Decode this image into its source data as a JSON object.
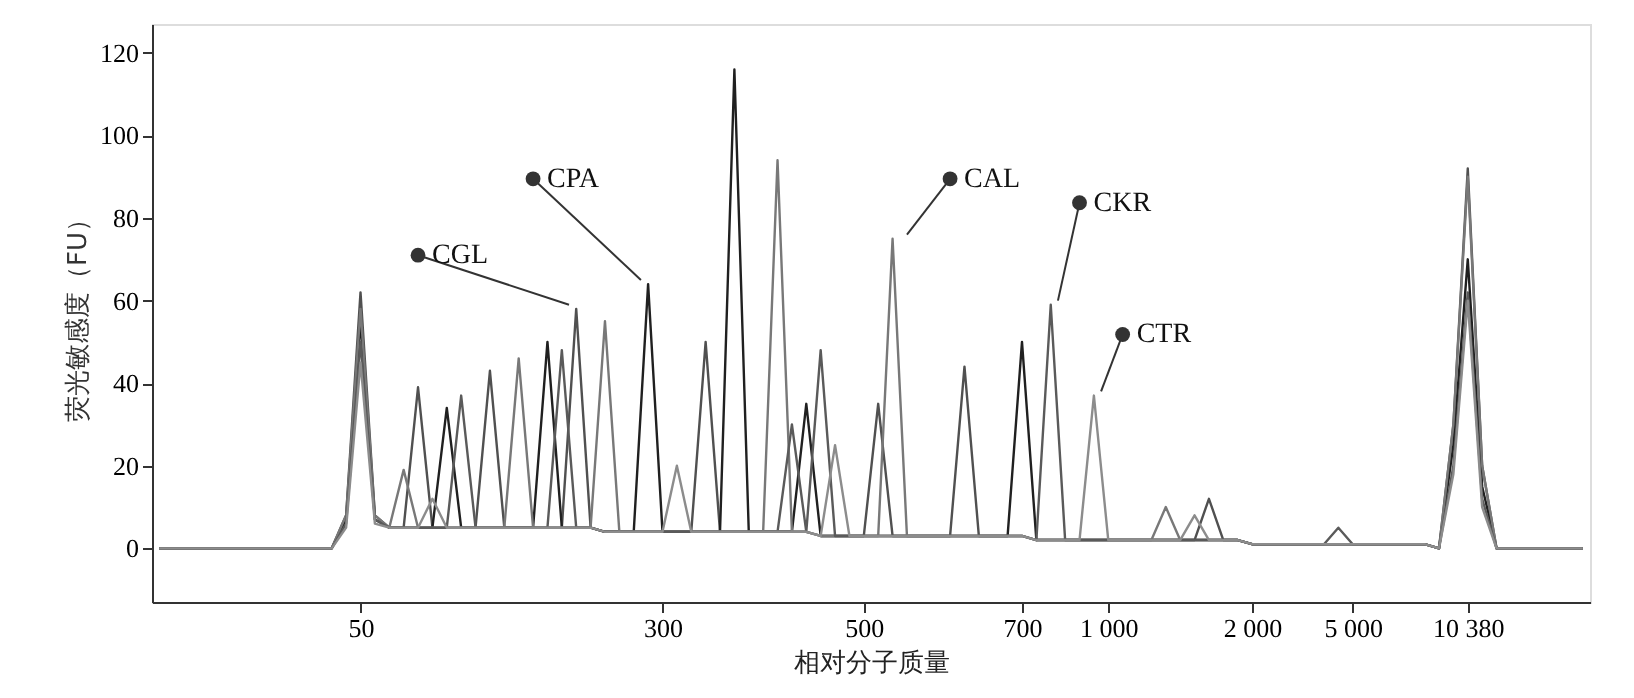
{
  "chart_data": {
    "type": "line",
    "xlabel": "相对分子质量",
    "ylabel": "荧光敏感度（FU）",
    "ylim": [
      -13,
      127
    ],
    "yticks": [
      0,
      20,
      40,
      60,
      80,
      100,
      120
    ],
    "categories": [
      null,
      null,
      null,
      null,
      null,
      null,
      null,
      null,
      null,
      null,
      null,
      null,
      null,
      null,
      "50",
      null,
      null,
      null,
      null,
      null,
      null,
      null,
      null,
      null,
      null,
      null,
      null,
      null,
      null,
      null,
      null,
      null,
      null,
      null,
      null,
      "300",
      null,
      null,
      null,
      null,
      null,
      null,
      null,
      null,
      null,
      null,
      null,
      null,
      null,
      "500",
      null,
      null,
      null,
      null,
      null,
      null,
      null,
      null,
      null,
      null,
      "700",
      null,
      null,
      null,
      null,
      null,
      "1 000",
      null,
      null,
      null,
      null,
      null,
      null,
      null,
      null,
      null,
      "2 000",
      null,
      null,
      null,
      null,
      null,
      null,
      "5 000",
      null,
      null,
      null,
      null,
      null,
      null,
      null,
      "10 380",
      null,
      null,
      null,
      null,
      null,
      null,
      null,
      null
    ],
    "grid": false,
    "marker": "none",
    "line_style": "solid",
    "series": [
      {
        "color": "#505050",
        "values": [
          0,
          0,
          0,
          0,
          0,
          0,
          0,
          0,
          0,
          0,
          0,
          0,
          0,
          8,
          62,
          8,
          5,
          5,
          39,
          5,
          5,
          5,
          5,
          43,
          5,
          5,
          5,
          5,
          5,
          58,
          5,
          4,
          4,
          4,
          4,
          4,
          4,
          4,
          50,
          4,
          4,
          4,
          4,
          4,
          4,
          4,
          3,
          3,
          3,
          3,
          35,
          3,
          3,
          3,
          3,
          3,
          44,
          3,
          3,
          3,
          3,
          2,
          2,
          2,
          2,
          2,
          2,
          2,
          2,
          2,
          2,
          2,
          2,
          12,
          2,
          2,
          1,
          1,
          1,
          1,
          1,
          1,
          1,
          1,
          1,
          1,
          1,
          1,
          1,
          0,
          30,
          92,
          20,
          0,
          0,
          0,
          0,
          0,
          0,
          0
        ]
      },
      {
        "color": "#202020",
        "values": [
          0,
          0,
          0,
          0,
          0,
          0,
          0,
          0,
          0,
          0,
          0,
          0,
          0,
          7,
          55,
          7,
          5,
          5,
          5,
          5,
          34,
          5,
          5,
          5,
          5,
          5,
          5,
          50,
          5,
          5,
          5,
          4,
          4,
          4,
          64,
          4,
          4,
          4,
          4,
          4,
          116,
          4,
          4,
          4,
          4,
          35,
          3,
          3,
          3,
          3,
          3,
          3,
          3,
          3,
          3,
          3,
          3,
          3,
          3,
          3,
          50,
          2,
          2,
          2,
          2,
          2,
          2,
          2,
          2,
          2,
          2,
          2,
          2,
          2,
          2,
          2,
          1,
          1,
          1,
          1,
          1,
          1,
          1,
          1,
          1,
          1,
          1,
          1,
          1,
          0,
          25,
          70,
          15,
          0,
          0,
          0,
          0,
          0,
          0,
          0
        ]
      },
      {
        "color": "#787878",
        "values": [
          0,
          0,
          0,
          0,
          0,
          0,
          0,
          0,
          0,
          0,
          0,
          0,
          0,
          8,
          58,
          8,
          5,
          19,
          5,
          5,
          5,
          5,
          5,
          5,
          5,
          46,
          5,
          5,
          5,
          5,
          5,
          55,
          4,
          4,
          4,
          4,
          4,
          4,
          4,
          4,
          4,
          4,
          4,
          94,
          4,
          4,
          3,
          3,
          3,
          3,
          3,
          75,
          3,
          3,
          3,
          3,
          3,
          3,
          3,
          3,
          3,
          2,
          2,
          2,
          2,
          2,
          2,
          2,
          2,
          2,
          10,
          2,
          2,
          2,
          2,
          2,
          1,
          1,
          1,
          1,
          1,
          1,
          1,
          1,
          1,
          1,
          1,
          1,
          1,
          0,
          30,
          90,
          20,
          0,
          0,
          0,
          0,
          0,
          0,
          0
        ]
      },
      {
        "color": "#5a5a5a",
        "values": [
          0,
          0,
          0,
          0,
          0,
          0,
          0,
          0,
          0,
          0,
          0,
          0,
          0,
          6,
          50,
          7,
          5,
          5,
          5,
          5,
          5,
          37,
          5,
          5,
          5,
          5,
          5,
          5,
          48,
          5,
          5,
          4,
          4,
          4,
          4,
          4,
          4,
          4,
          4,
          4,
          4,
          4,
          4,
          4,
          30,
          4,
          48,
          3,
          3,
          3,
          3,
          3,
          3,
          3,
          3,
          3,
          3,
          3,
          3,
          3,
          3,
          2,
          59,
          2,
          2,
          2,
          2,
          2,
          2,
          2,
          2,
          2,
          2,
          2,
          2,
          2,
          1,
          1,
          1,
          1,
          1,
          1,
          5,
          1,
          1,
          1,
          1,
          1,
          1,
          0,
          20,
          62,
          12,
          0,
          0,
          0,
          0,
          0,
          0,
          0
        ]
      },
      {
        "color": "#8c8c8c",
        "values": [
          0,
          0,
          0,
          0,
          0,
          0,
          0,
          0,
          0,
          0,
          0,
          0,
          0,
          5,
          45,
          6,
          5,
          5,
          5,
          12,
          5,
          5,
          5,
          5,
          5,
          5,
          5,
          5,
          5,
          5,
          5,
          4,
          4,
          4,
          4,
          4,
          20,
          4,
          4,
          4,
          4,
          4,
          4,
          4,
          4,
          4,
          3,
          25,
          3,
          3,
          3,
          3,
          3,
          3,
          3,
          3,
          3,
          3,
          3,
          3,
          3,
          2,
          2,
          2,
          2,
          37,
          2,
          2,
          2,
          2,
          2,
          2,
          8,
          2,
          2,
          2,
          1,
          1,
          1,
          1,
          1,
          1,
          1,
          1,
          1,
          1,
          1,
          1,
          1,
          0,
          18,
          60,
          10,
          0,
          0,
          0,
          0,
          0,
          0,
          0
        ]
      }
    ],
    "annotations": [
      "CGL",
      "CPA",
      "CAL",
      "CKR",
      "CTR"
    ]
  }
}
